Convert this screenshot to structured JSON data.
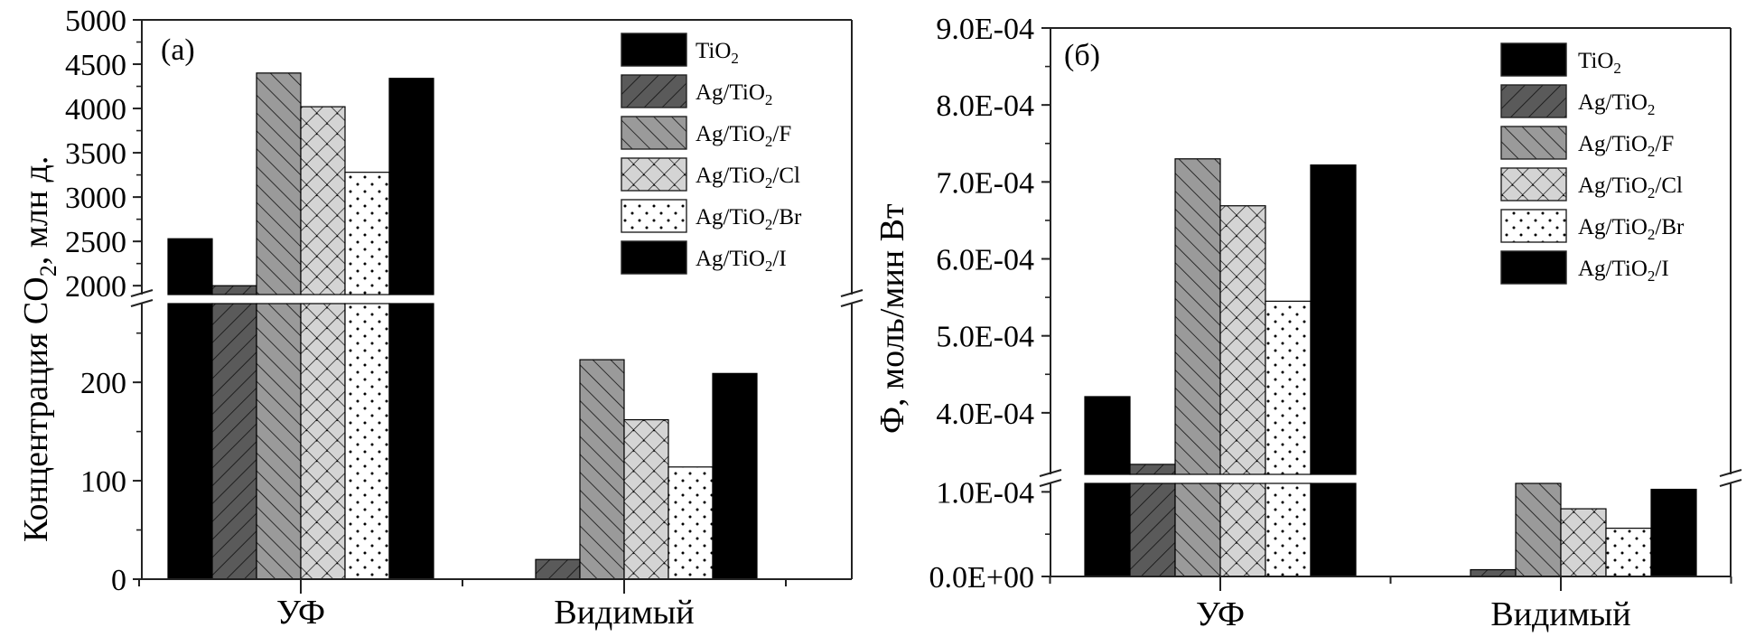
{
  "chart_data": [
    {
      "type": "bar",
      "panel_label": "(a)",
      "title": "",
      "xlabel": "",
      "ylabel": "Концентрация CO₂, млн д.",
      "ylabel_parts": {
        "pre": "Концентрация CO",
        "sub": "2",
        "post": ", млн д."
      },
      "categories": [
        "УФ",
        "Видимый"
      ],
      "y_break": {
        "lower_range": [
          0,
          280
        ],
        "upper_range": [
          1900,
          5000
        ]
      },
      "lower_ticks": [
        0,
        100,
        200
      ],
      "upper_ticks": [
        2000,
        2500,
        3000,
        3500,
        4000,
        4500,
        5000
      ],
      "tick_labels": {
        "lower": [
          "0",
          "100",
          "200"
        ],
        "upper": [
          "2000",
          "2500",
          "3000",
          "3500",
          "4000",
          "4500",
          "5000"
        ]
      },
      "legend_position": "top-right",
      "grid": false,
      "series": [
        {
          "name": "TiO2",
          "values": [
            2530,
            0
          ]
        },
        {
          "name": "Ag/TiO2",
          "values": [
            2000,
            20
          ]
        },
        {
          "name": "Ag/TiO2/F",
          "values": [
            4400,
            223
          ]
        },
        {
          "name": "Ag/TiO2/Cl",
          "values": [
            4020,
            162
          ]
        },
        {
          "name": "Ag/TiO2/Br",
          "values": [
            3280,
            114
          ]
        },
        {
          "name": "Ag/TiO2/I",
          "values": [
            4340,
            209
          ]
        }
      ]
    },
    {
      "type": "bar",
      "panel_label": "(б)",
      "title": "",
      "xlabel": "",
      "ylabel": "Ф, моль/мин Вт",
      "categories": [
        "УФ",
        "Видимый"
      ],
      "y_break": {
        "lower_range": [
          0,
          0.00011
        ],
        "upper_range": [
          0.00032,
          0.0009
        ]
      },
      "lower_ticks": [
        0,
        0.0001
      ],
      "upper_ticks": [
        0.0004,
        0.0005,
        0.0006,
        0.0007,
        0.0008,
        0.0009
      ],
      "tick_labels": {
        "lower": [
          "0.0E+00",
          "1.0E-04"
        ],
        "upper": [
          "4.0E-04",
          "5.0E-04",
          "6.0E-04",
          "7.0E-04",
          "8.0E-04",
          "9.0E-04"
        ]
      },
      "legend_position": "top-right",
      "grid": false,
      "series": [
        {
          "name": "TiO2",
          "values": [
            0.000421,
            0
          ]
        },
        {
          "name": "Ag/TiO2",
          "values": [
            0.000333,
            8e-06
          ]
        },
        {
          "name": "Ag/TiO2/F",
          "values": [
            0.00073,
            0.00011
          ]
        },
        {
          "name": "Ag/TiO2/Cl",
          "values": [
            0.000669,
            8e-05
          ]
        },
        {
          "name": "Ag/TiO2/Br",
          "values": [
            0.000545,
            5.7e-05
          ]
        },
        {
          "name": "Ag/TiO2/I",
          "values": [
            0.000722,
            0.000103
          ]
        }
      ]
    }
  ],
  "legend": [
    {
      "pre": "TiO",
      "sub": "2",
      "post": "",
      "pattern": "solid-black"
    },
    {
      "pre": "Ag/TiO",
      "sub": "2",
      "post": "",
      "pattern": "forward-hatch-dark"
    },
    {
      "pre": "Ag/TiO",
      "sub": "2",
      "post": "/F",
      "pattern": "back-hatch-gray"
    },
    {
      "pre": "Ag/TiO",
      "sub": "2",
      "post": "/Cl",
      "pattern": "crosshatch-light"
    },
    {
      "pre": "Ag/TiO",
      "sub": "2",
      "post": "/Br",
      "pattern": "dots-white"
    },
    {
      "pre": "Ag/TiO",
      "sub": "2",
      "post": "/I",
      "pattern": "solid-black"
    }
  ],
  "colors": {
    "solid": "#000000",
    "dark_hatch_fill": "#5a5a5a",
    "gray_hatch_fill": "#9a9a9a",
    "cross_fill": "#d4d4d4",
    "dots_fill": "#ffffff"
  }
}
